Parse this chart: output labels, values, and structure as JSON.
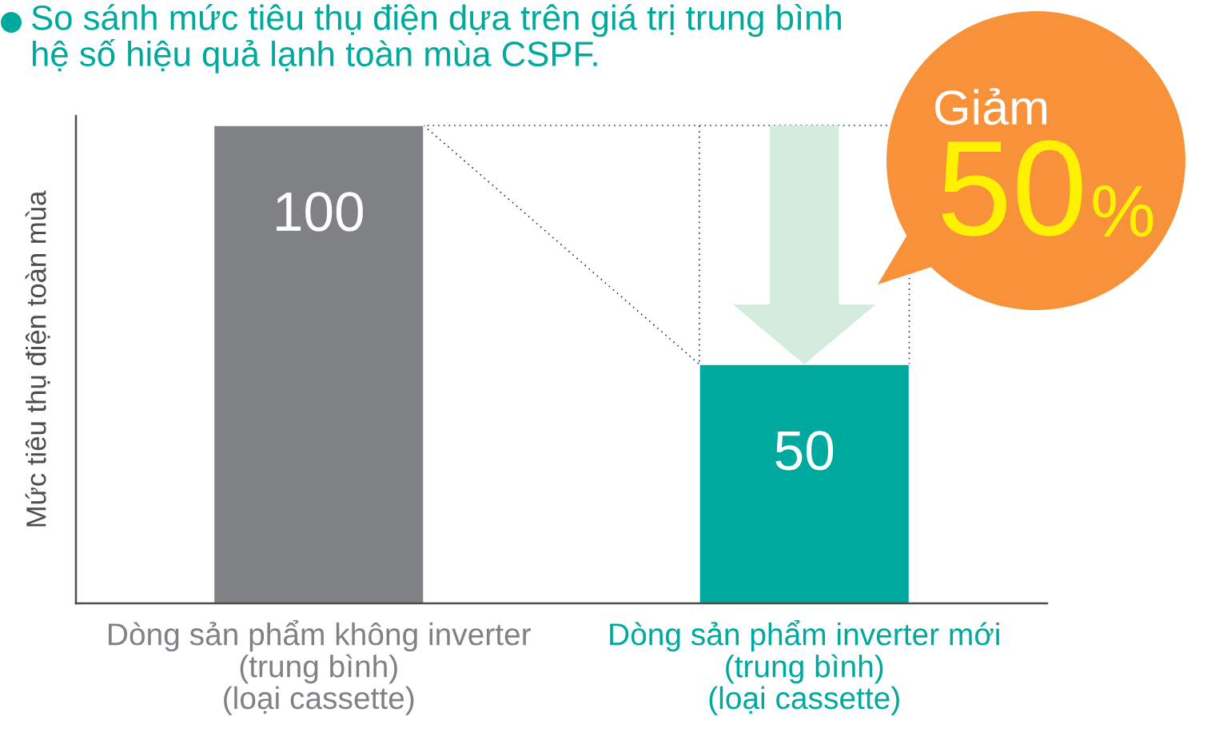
{
  "chart_data": {
    "type": "bar",
    "title": "So sánh mức tiêu thụ điện dựa trên giá trị trung bình\nhệ số hiệu quả lạnh toàn mùa CSPF.",
    "ylabel": "Mức tiêu thụ điện toàn mùa",
    "categories": [
      "Dòng sản phẩm không inverter\n(trung bình)\n(loại cassette)",
      "Dòng sản phẩm inverter mới\n(trung bình)\n(loại cassette)"
    ],
    "values": [
      100,
      50
    ],
    "colors": [
      "#808184",
      "#00a99d"
    ],
    "ylim": [
      0,
      102
    ],
    "data_labels": true,
    "tick_labels": "x",
    "annotations": [
      "Giảm",
      "50",
      "%"
    ]
  }
}
